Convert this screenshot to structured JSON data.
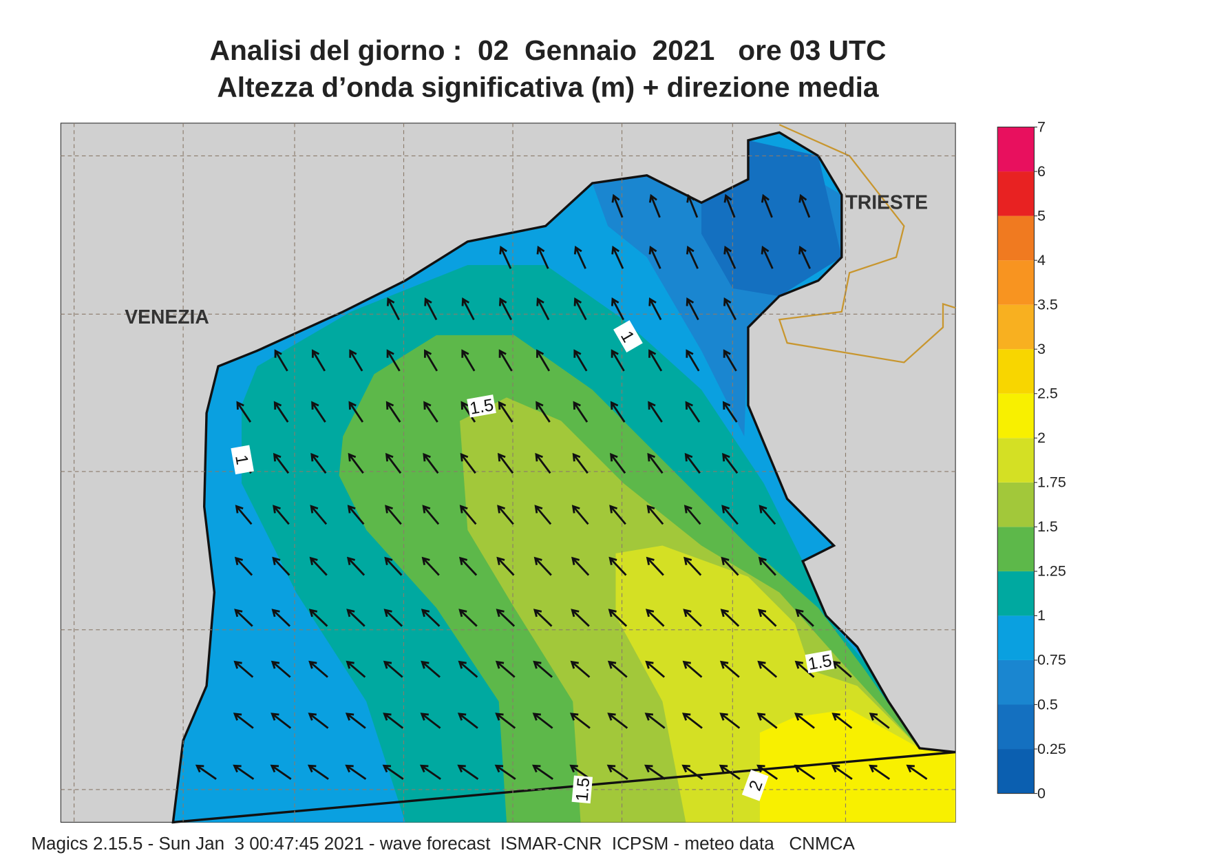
{
  "header": {
    "title": "Analisi del giorno :  02  Gennaio  2021   ore 03 UTC",
    "subtitle": "Altezza d’onda significativa (m) + direzione media"
  },
  "map": {
    "places": [
      "VENEZIA",
      "TRIESTE"
    ],
    "contour_labels": [
      "1",
      "1.5",
      "1",
      "1.5",
      "1.5",
      "2"
    ]
  },
  "legend": {
    "levels": [
      0,
      0.25,
      0.5,
      0.75,
      1,
      1.25,
      1.5,
      1.75,
      2,
      2.5,
      3,
      3.5,
      4,
      5,
      6,
      7
    ],
    "colors": [
      "#0b5fb0",
      "#1470c0",
      "#1a86d0",
      "#0aa0e0",
      "#00a9a0",
      "#5db84a",
      "#a2c83a",
      "#d4e024",
      "#f8f000",
      "#f8d600",
      "#f8b020",
      "#f89420",
      "#f07a20",
      "#e82222",
      "#e8105e"
    ]
  },
  "footer": "Magics 2.15.5 - Sun Jan  3 00:47:45 2021 - wave forecast  ISMAR-CNR  ICPSM - meteo data   CNMCA"
}
